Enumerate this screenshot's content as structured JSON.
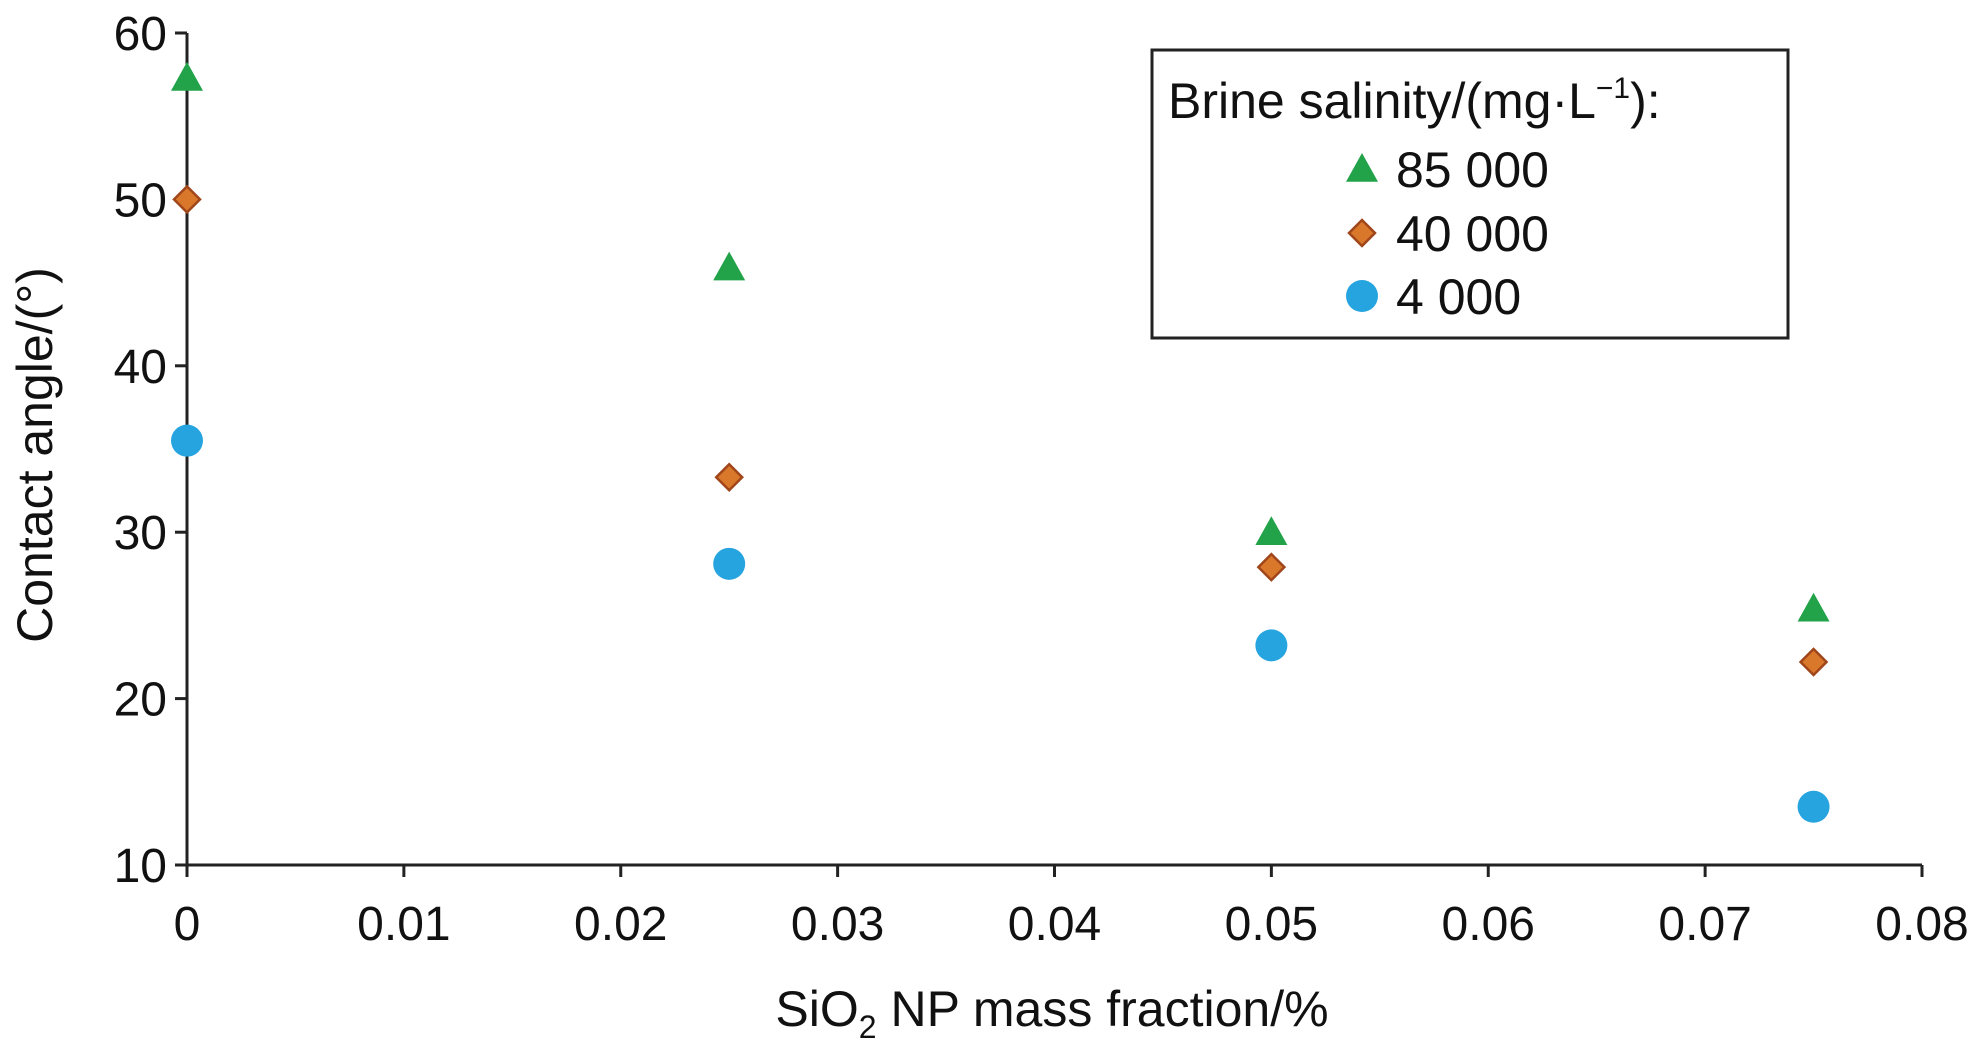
{
  "chart_data": {
    "type": "scatter",
    "xlabel": {
      "prefix": "SiO",
      "sub": "2",
      "suffix": " NP mass fraction/%"
    },
    "ylabel": "Contact angle/(°)",
    "xlim": [
      0,
      0.08
    ],
    "ylim": [
      10,
      60
    ],
    "x_ticks": [
      "0",
      "0.01",
      "0.02",
      "0.03",
      "0.04",
      "0.05",
      "0.06",
      "0.07",
      "0.08"
    ],
    "y_ticks": [
      "10",
      "20",
      "30",
      "40",
      "50",
      "60"
    ],
    "grid": false,
    "legend": {
      "title": "Brine salinity/(mg·L",
      "title_sup": "−1",
      "title_end": "):",
      "placement": "top-right"
    },
    "x": [
      0,
      0.025,
      0.05,
      0.075
    ],
    "series": [
      {
        "name": "85 000",
        "marker": "triangle",
        "color": "#22a34a",
        "values": [
          57.3,
          45.9,
          30.0,
          25.4
        ]
      },
      {
        "name": "40 000",
        "marker": "diamond",
        "color": "#d9772b",
        "values": [
          50.0,
          33.3,
          27.9,
          22.2
        ]
      },
      {
        "name": "4 000",
        "marker": "circle",
        "color": "#26a4e0",
        "values": [
          35.5,
          28.1,
          23.2,
          13.5
        ]
      }
    ]
  }
}
